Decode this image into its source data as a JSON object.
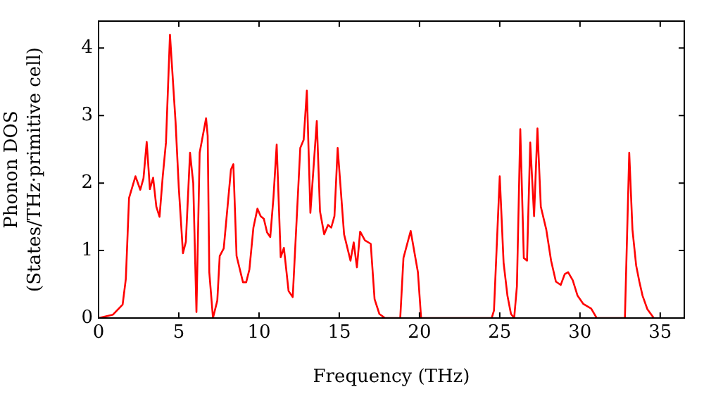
{
  "chart_data": {
    "type": "line",
    "xlabel": "Frequency (THz)",
    "ylabel": "Phonon DOS\n(States/THz·primitive cell)",
    "xlim": [
      0,
      36.5
    ],
    "ylim": [
      0,
      4.4
    ],
    "xticks": [
      0,
      5,
      10,
      15,
      20,
      25,
      30,
      35
    ],
    "yticks": [
      0,
      1,
      2,
      3,
      4
    ],
    "grid": false,
    "legend": false,
    "marker": "none",
    "line_style": "solid",
    "series": [
      {
        "color": "#ff0000",
        "x": [
          0,
          0.9,
          1.5,
          1.7,
          1.9,
          2.3,
          2.6,
          2.8,
          3.0,
          3.2,
          3.4,
          3.6,
          3.8,
          4.0,
          4.2,
          4.45,
          4.8,
          5.0,
          5.26,
          5.44,
          5.7,
          5.9,
          6.1,
          6.3,
          6.7,
          6.8,
          6.9,
          7.13,
          7.4,
          7.55,
          7.8,
          8.25,
          8.4,
          8.6,
          9.0,
          9.2,
          9.4,
          9.65,
          9.9,
          10.1,
          10.3,
          10.5,
          10.7,
          10.9,
          11.1,
          11.35,
          11.55,
          11.84,
          12.1,
          12.57,
          12.78,
          12.98,
          13.2,
          13.6,
          13.8,
          14.06,
          14.3,
          14.5,
          14.7,
          14.9,
          15.3,
          15.7,
          15.9,
          16.1,
          16.3,
          16.6,
          16.96,
          17.2,
          17.5,
          17.85,
          18.8,
          19.0,
          19.45,
          19.9,
          20.1,
          24.5,
          24.64,
          25.0,
          25.24,
          25.48,
          25.7,
          25.9,
          26.07,
          26.28,
          26.5,
          26.7,
          26.9,
          27.14,
          27.35,
          27.56,
          27.9,
          28.2,
          28.5,
          28.8,
          29.05,
          29.26,
          29.55,
          29.85,
          30.2,
          30.7,
          31.04,
          32.8,
          33.07,
          33.27,
          33.5,
          33.7,
          33.9,
          34.2,
          34.6
        ],
        "values": [
          0,
          0.05,
          0.2,
          0.58,
          1.78,
          2.1,
          1.9,
          2.07,
          2.61,
          1.91,
          2.08,
          1.65,
          1.5,
          2.1,
          2.6,
          4.2,
          2.9,
          1.93,
          0.96,
          1.13,
          2.45,
          2.0,
          0.09,
          2.45,
          2.96,
          2.7,
          0.68,
          0,
          0.26,
          0.92,
          1.03,
          2.2,
          2.28,
          0.92,
          0.53,
          0.53,
          0.72,
          1.34,
          1.62,
          1.51,
          1.47,
          1.27,
          1.2,
          1.79,
          2.57,
          0.9,
          1.04,
          0.4,
          0.31,
          2.52,
          2.64,
          3.37,
          1.56,
          2.92,
          1.58,
          1.24,
          1.38,
          1.34,
          1.51,
          2.52,
          1.24,
          0.85,
          1.12,
          0.75,
          1.28,
          1.15,
          1.1,
          0.28,
          0.06,
          0,
          0,
          0.89,
          1.29,
          0.68,
          0,
          0,
          0.11,
          2.1,
          0.82,
          0.33,
          0.06,
          0,
          0.47,
          2.8,
          0.89,
          0.85,
          2.6,
          1.51,
          2.81,
          1.65,
          1.31,
          0.85,
          0.54,
          0.49,
          0.65,
          0.68,
          0.56,
          0.33,
          0.21,
          0.14,
          0,
          0,
          2.45,
          1.31,
          0.78,
          0.54,
          0.33,
          0.13,
          0
        ]
      }
    ]
  }
}
